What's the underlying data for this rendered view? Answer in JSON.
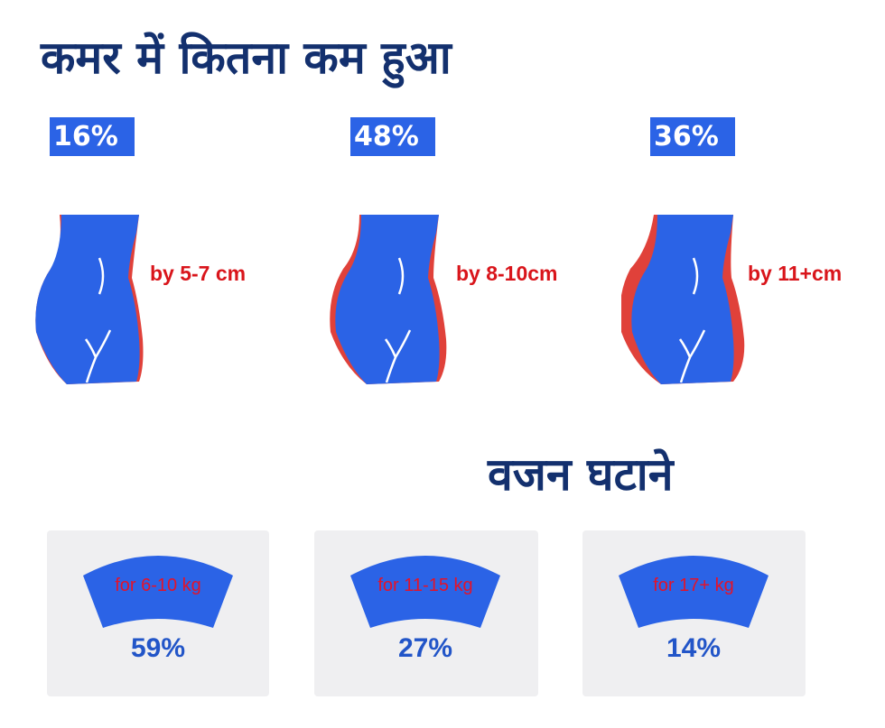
{
  "colors": {
    "blue": "#2b63e6",
    "navy": "#13306e",
    "red": "#d9151b",
    "panel": "#efeff1"
  },
  "waist": {
    "title": "कमर में कितना कम हुआ",
    "items": [
      {
        "percent": "16%",
        "label": "by 5-7 cm"
      },
      {
        "percent": "48%",
        "label": "by 8-10cm"
      },
      {
        "percent": "36%",
        "label": "by 11+cm"
      }
    ]
  },
  "weight": {
    "title": "वजन घटाने",
    "items": [
      {
        "label": "for 6-10 kg",
        "percent": "59%"
      },
      {
        "label": "for 11-15 kg",
        "percent": "27%"
      },
      {
        "label": "for 17+ kg",
        "percent": "14%"
      }
    ]
  }
}
